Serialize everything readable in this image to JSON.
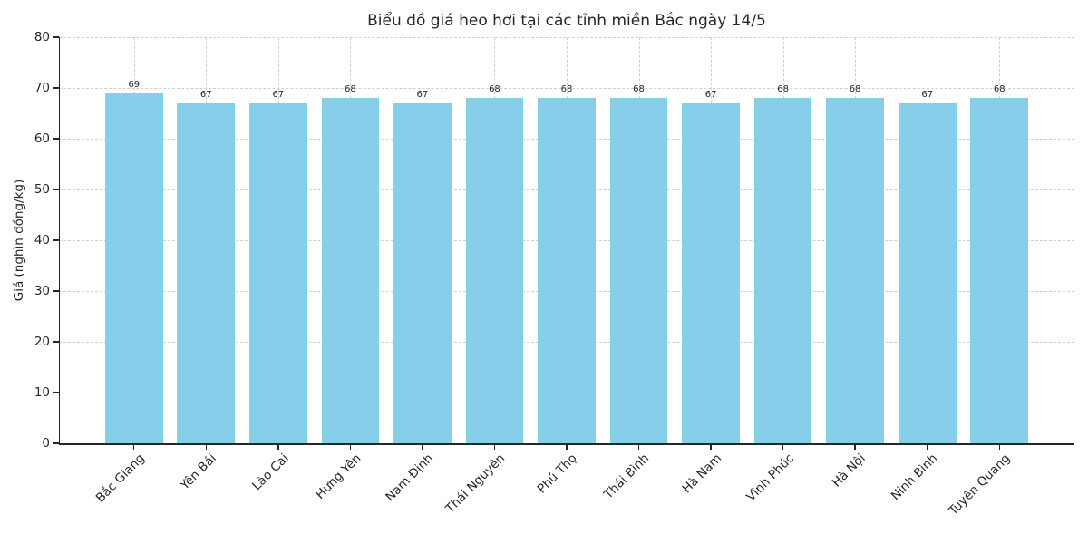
{
  "chart_data": {
    "type": "bar",
    "title": "Biểu đồ giá heo hơi tại các tỉnh miền Bắc ngày 14/5",
    "xlabel": "",
    "ylabel": "Giá (nghìn đồng/kg)",
    "categories": [
      "Bắc Giang",
      "Yên Bái",
      "Lào Cai",
      "Hưng Yên",
      "Nam Định",
      "Thái Nguyên",
      "Phú Thọ",
      "Thái Bình",
      "Hà Nam",
      "Vĩnh Phúc",
      "Hà Nội",
      "Ninh Bình",
      "Tuyên Quang"
    ],
    "values": [
      69,
      67,
      67,
      68,
      67,
      68,
      68,
      68,
      67,
      68,
      68,
      67,
      68
    ],
    "bar_value_labels": [
      "69",
      "67",
      "67",
      "68",
      "67",
      "68",
      "68",
      "68",
      "67",
      "68",
      "68",
      "67",
      "68"
    ],
    "ylim": [
      0,
      80
    ],
    "yticks": [
      0,
      10,
      20,
      30,
      40,
      50,
      60,
      70,
      80
    ],
    "ytick_labels": [
      "0",
      "10",
      "20",
      "30",
      "40",
      "50",
      "60",
      "70",
      "80"
    ],
    "grid": true,
    "grid_linestyle": "dashed",
    "legend": "none",
    "x_tick_rotation": 45,
    "bar_color": "#87CEEB",
    "text_color": "#262626",
    "grid_color": "#cfcfcf",
    "background_color": "#ffffff"
  }
}
